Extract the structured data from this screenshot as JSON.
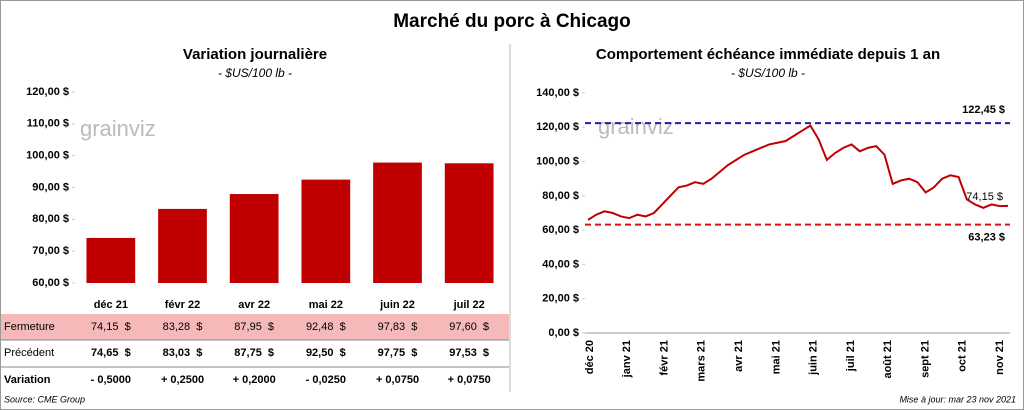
{
  "title": "Marché du porc à Chicago",
  "watermark": "grainviz",
  "chart_data": [
    {
      "type": "bar",
      "title": "Variation journalière",
      "subtitle": "- $US/100 lb -",
      "categories": [
        "déc 21",
        "févr 22",
        "avr 22",
        "mai 22",
        "juin 22",
        "juil 22"
      ],
      "values": [
        74.15,
        83.28,
        87.95,
        92.48,
        97.83,
        97.6
      ],
      "color": "#c00000",
      "ylim": [
        60,
        120
      ],
      "yticks": [
        {
          "value": 60,
          "label": "60,00 $"
        },
        {
          "value": 70,
          "label": "70,00 $"
        },
        {
          "value": 80,
          "label": "80,00 $"
        },
        {
          "value": 90,
          "label": "90,00 $"
        },
        {
          "value": 100,
          "label": "100,00 $"
        },
        {
          "value": 110,
          "label": "110,00 $"
        },
        {
          "value": 120,
          "label": "120,00 $"
        }
      ],
      "grid": false
    },
    {
      "type": "line",
      "title": "Comportement  échéance immédiate depuis 1 an",
      "subtitle": "- $US/100 lb -",
      "x_labels": [
        "déc 20",
        "janv 21",
        "févr 21",
        "mars 21",
        "avr 21",
        "mai 21",
        "juin 21",
        "juil 21",
        "août 21",
        "sept 21",
        "oct 21",
        "nov 21"
      ],
      "series": [
        {
          "color": "#c00000",
          "values": [
            66,
            69,
            71,
            70,
            68,
            67,
            69,
            68,
            70,
            75,
            80,
            85,
            86,
            88,
            87,
            90,
            94,
            98,
            101,
            104,
            106,
            108,
            110,
            111,
            112,
            115,
            118,
            121,
            113,
            101,
            105,
            108,
            110,
            106,
            108,
            109,
            104,
            87,
            89,
            90,
            88,
            82,
            85,
            90,
            92,
            91,
            78,
            75,
            73,
            75,
            74,
            74.15
          ]
        }
      ],
      "last_value_label": "74,15 $",
      "reference_lines": [
        {
          "value": 122.45,
          "label": "122,45 $",
          "color": "#1f1fa8"
        },
        {
          "value": 63.23,
          "label": "63,23 $",
          "color": "#e01010"
        }
      ],
      "ylim": [
        0,
        140
      ],
      "yticks": [
        {
          "value": 0,
          "label": "0,00 $"
        },
        {
          "value": 20,
          "label": "20,00 $"
        },
        {
          "value": 40,
          "label": "40,00 $"
        },
        {
          "value": 60,
          "label": "60,00 $"
        },
        {
          "value": 80,
          "label": "80,00 $"
        },
        {
          "value": 100,
          "label": "100,00 $"
        },
        {
          "value": 120,
          "label": "120,00 $"
        },
        {
          "value": 140,
          "label": "140,00 $"
        }
      ],
      "grid": false
    }
  ],
  "table": {
    "rows": [
      {
        "label": "Fermeture",
        "cells": [
          "74,15  $",
          "83,28  $",
          "87,95  $",
          "92,48  $",
          "97,83  $",
          "97,60  $"
        ]
      },
      {
        "label": "Précédent",
        "cells": [
          "74,65  $",
          "83,03  $",
          "87,75  $",
          "92,50  $",
          "97,75  $",
          "97,53  $"
        ]
      },
      {
        "label": "Variation",
        "cells": [
          "- 0,5000",
          "+ 0,2500",
          "+ 0,2000",
          "- 0,0250",
          "+ 0,0750",
          "+ 0,0750"
        ]
      }
    ]
  },
  "footer": {
    "source": "Source: CME Group",
    "updated": "Mise à jour: mar 23 nov 2021"
  }
}
